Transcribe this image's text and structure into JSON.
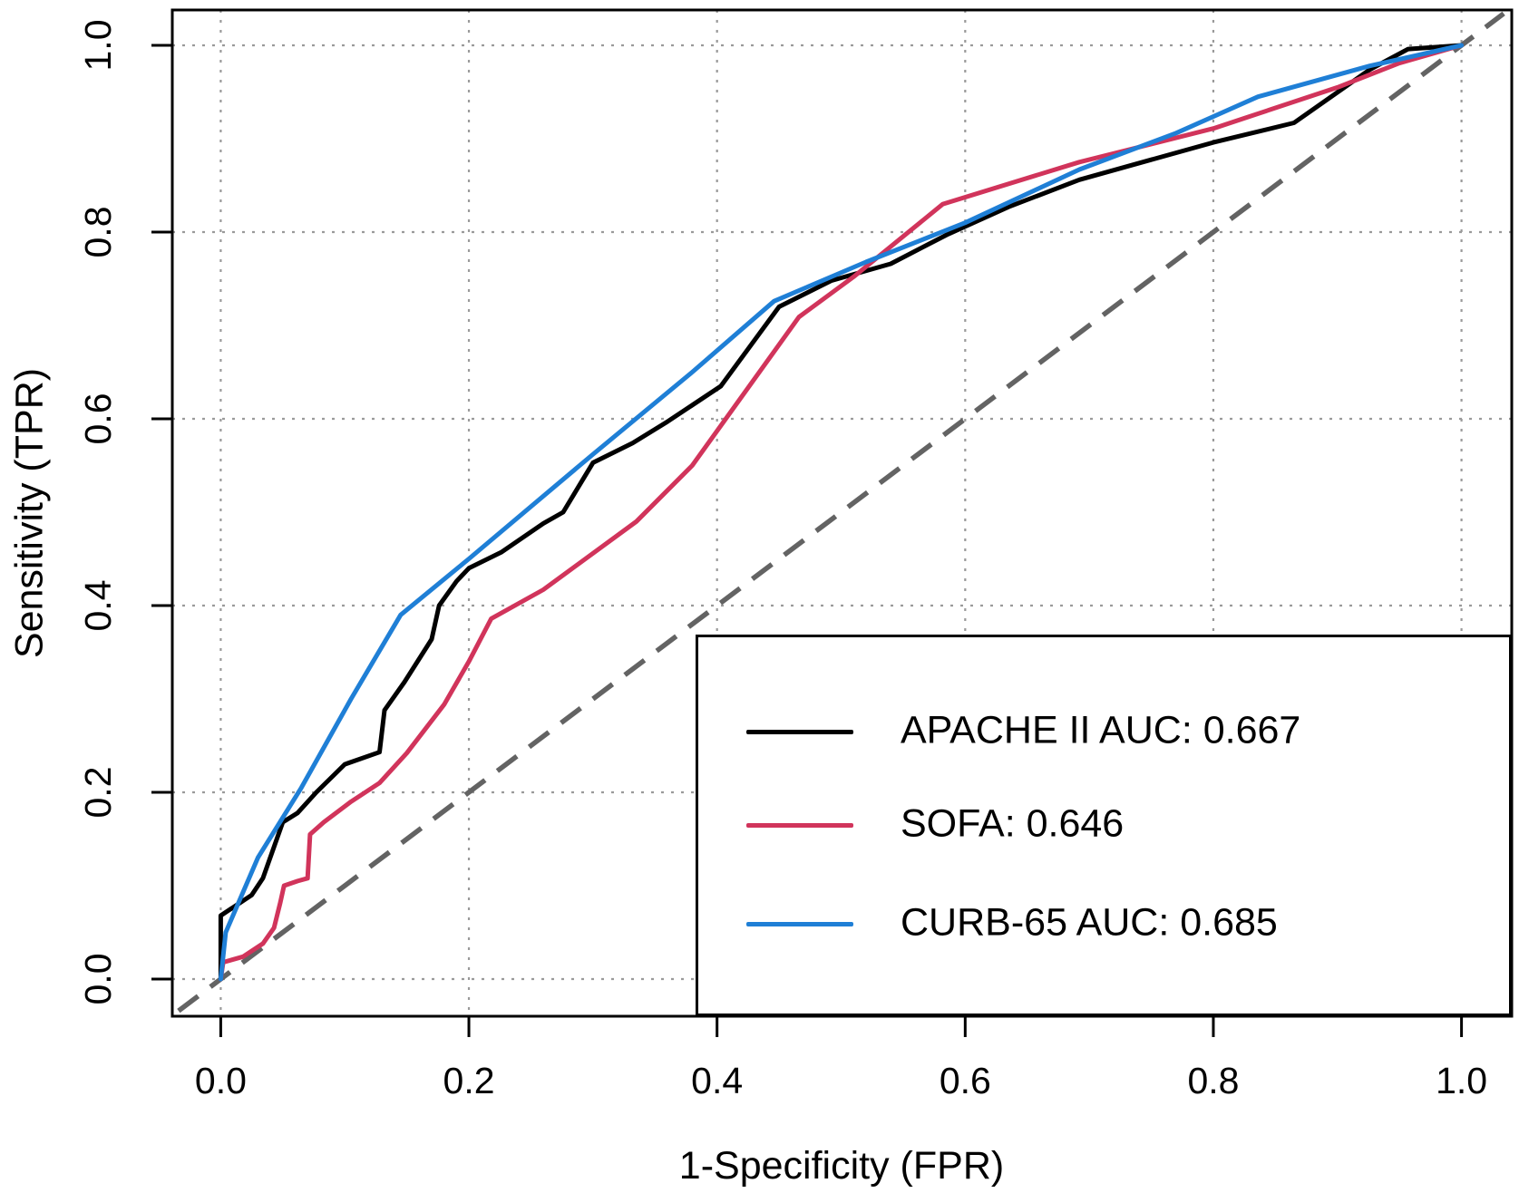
{
  "figure": {
    "background": "#ffffff",
    "box_color": "#000000",
    "grid_color": "#9a9a9a"
  },
  "chart_data": {
    "type": "line",
    "title": "",
    "xlabel": "1-Specificity (FPR)",
    "ylabel": "Sensitivity (TPR)",
    "xlim": [
      0,
      1
    ],
    "ylim": [
      0,
      1
    ],
    "grid": true,
    "grid_style": "dotted",
    "legend_position": "bottom-right",
    "x_tick_values": [
      0.0,
      0.2,
      0.4,
      0.6,
      0.8,
      1.0
    ],
    "x_tick_labels": [
      "0.0",
      "0.2",
      "0.4",
      "0.6",
      "0.8",
      "1.0"
    ],
    "y_tick_values": [
      0.0,
      0.2,
      0.4,
      0.6,
      0.8,
      1.0
    ],
    "y_tick_labels": [
      "0.0",
      "0.2",
      "0.4",
      "0.6",
      "0.8",
      "1.0"
    ],
    "reference_line": {
      "name": "chance-diagonal",
      "from": [
        -0.034,
        -0.034
      ],
      "to": [
        1.034,
        1.034
      ],
      "color": "#636363",
      "style": "dashed"
    },
    "series": [
      {
        "name": "APACHE II AUC: 0.667",
        "auc": 0.667,
        "color": "#000000",
        "points": [
          [
            0.0,
            0.0
          ],
          [
            0.0,
            0.068
          ],
          [
            0.025,
            0.09
          ],
          [
            0.034,
            0.108
          ],
          [
            0.05,
            0.168
          ],
          [
            0.062,
            0.178
          ],
          [
            0.077,
            0.2
          ],
          [
            0.1,
            0.23
          ],
          [
            0.128,
            0.243
          ],
          [
            0.132,
            0.288
          ],
          [
            0.148,
            0.318
          ],
          [
            0.17,
            0.364
          ],
          [
            0.176,
            0.4
          ],
          [
            0.19,
            0.426
          ],
          [
            0.2,
            0.44
          ],
          [
            0.226,
            0.457
          ],
          [
            0.26,
            0.488
          ],
          [
            0.276,
            0.5
          ],
          [
            0.3,
            0.553
          ],
          [
            0.332,
            0.574
          ],
          [
            0.36,
            0.597
          ],
          [
            0.403,
            0.635
          ],
          [
            0.45,
            0.72
          ],
          [
            0.492,
            0.748
          ],
          [
            0.54,
            0.766
          ],
          [
            0.585,
            0.797
          ],
          [
            0.635,
            0.827
          ],
          [
            0.692,
            0.856
          ],
          [
            0.8,
            0.896
          ],
          [
            0.865,
            0.917
          ],
          [
            0.926,
            0.974
          ],
          [
            0.957,
            0.996
          ],
          [
            1.0,
            1.0
          ]
        ]
      },
      {
        "name": "SOFA: 0.646",
        "auc": 0.646,
        "color": "#d1345b",
        "points": [
          [
            0.0,
            0.0
          ],
          [
            0.002,
            0.018
          ],
          [
            0.018,
            0.024
          ],
          [
            0.034,
            0.038
          ],
          [
            0.043,
            0.055
          ],
          [
            0.048,
            0.082
          ],
          [
            0.051,
            0.1
          ],
          [
            0.062,
            0.105
          ],
          [
            0.07,
            0.108
          ],
          [
            0.072,
            0.155
          ],
          [
            0.083,
            0.168
          ],
          [
            0.105,
            0.19
          ],
          [
            0.128,
            0.21
          ],
          [
            0.15,
            0.242
          ],
          [
            0.18,
            0.294
          ],
          [
            0.2,
            0.34
          ],
          [
            0.218,
            0.386
          ],
          [
            0.26,
            0.417
          ],
          [
            0.335,
            0.49
          ],
          [
            0.38,
            0.55
          ],
          [
            0.466,
            0.709
          ],
          [
            0.51,
            0.752
          ],
          [
            0.582,
            0.83
          ],
          [
            0.692,
            0.875
          ],
          [
            0.8,
            0.911
          ],
          [
            0.9,
            0.955
          ],
          [
            0.95,
            0.981
          ],
          [
            1.0,
            1.0
          ]
        ]
      },
      {
        "name": "CURB-65 AUC: 0.685",
        "auc": 0.685,
        "color": "#1f7fd6",
        "points": [
          [
            0.0,
            0.0
          ],
          [
            0.004,
            0.05
          ],
          [
            0.03,
            0.13
          ],
          [
            0.065,
            0.205
          ],
          [
            0.105,
            0.3
          ],
          [
            0.145,
            0.39
          ],
          [
            0.2,
            0.45
          ],
          [
            0.3,
            0.562
          ],
          [
            0.38,
            0.65
          ],
          [
            0.446,
            0.726
          ],
          [
            0.52,
            0.768
          ],
          [
            0.6,
            0.81
          ],
          [
            0.692,
            0.867
          ],
          [
            0.77,
            0.906
          ],
          [
            0.836,
            0.945
          ],
          [
            0.926,
            0.978
          ],
          [
            1.0,
            1.0
          ]
        ]
      }
    ]
  },
  "legend": {
    "items": [
      {
        "label": "APACHE II AUC: 0.667"
      },
      {
        "label": "SOFA: 0.646"
      },
      {
        "label": "CURB-65 AUC: 0.685"
      }
    ]
  }
}
